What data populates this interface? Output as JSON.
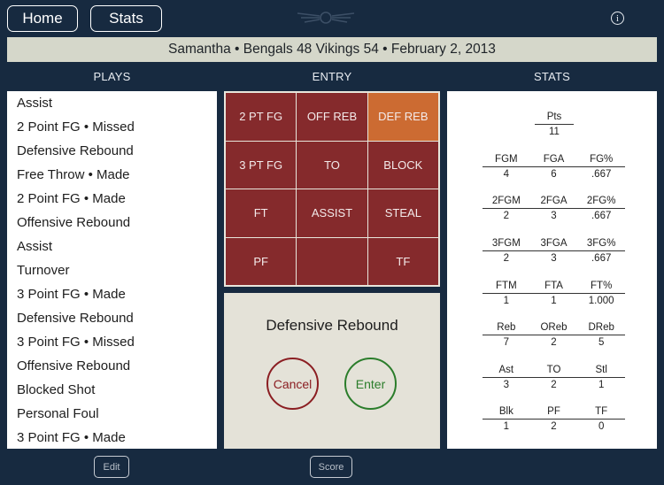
{
  "header": {
    "home_label": "Home",
    "stats_label": "Stats",
    "info_glyph": "i",
    "logo_icon": "winged-emblem-icon"
  },
  "banner": {
    "text": "Samantha • Bengals 48   Vikings 54 • February 2, 2013"
  },
  "columns": {
    "plays": "PLAYS",
    "entry": "ENTRY",
    "stats": "STATS"
  },
  "plays": [
    "Assist",
    "2 Point FG • Missed",
    "Defensive Rebound",
    "Free Throw • Made",
    "2 Point FG • Made",
    "Offensive Rebound",
    "Assist",
    "Turnover",
    "3 Point FG • Made",
    "Defensive Rebound",
    "3 Point FG • Missed",
    "Offensive Rebound",
    "Blocked Shot",
    "Personal Foul",
    "3 Point FG • Made"
  ],
  "entry": {
    "buttons": [
      "2 PT FG",
      "OFF REB",
      "DEF REB",
      "3 PT FG",
      "TO",
      "BLOCK",
      "FT",
      "ASSIST",
      "STEAL",
      "PF",
      "",
      "TF"
    ],
    "selected_label": "Defensive Rebound",
    "cancel_label": "Cancel",
    "enter_label": "Enter",
    "active_color": "#cc6b32",
    "button_color": "#852a2c"
  },
  "stats": {
    "pts": {
      "label": "Pts",
      "value": "11"
    },
    "groups": [
      {
        "labels": [
          "FGM",
          "FGA",
          "FG%"
        ],
        "values": [
          "4",
          "6",
          ".667"
        ]
      },
      {
        "labels": [
          "2FGM",
          "2FGA",
          "2FG%"
        ],
        "values": [
          "2",
          "3",
          ".667"
        ]
      },
      {
        "labels": [
          "3FGM",
          "3FGA",
          "3FG%"
        ],
        "values": [
          "2",
          "3",
          ".667"
        ]
      },
      {
        "labels": [
          "FTM",
          "FTA",
          "FT%"
        ],
        "values": [
          "1",
          "1",
          "1.000"
        ]
      },
      {
        "labels": [
          "Reb",
          "OReb",
          "DReb"
        ],
        "values": [
          "7",
          "2",
          "5"
        ]
      },
      {
        "labels": [
          "Ast",
          "TO",
          "Stl"
        ],
        "values": [
          "3",
          "2",
          "1"
        ]
      },
      {
        "labels": [
          "Blk",
          "PF",
          "TF"
        ],
        "values": [
          "1",
          "2",
          "0"
        ]
      }
    ]
  },
  "footer": {
    "edit_label": "Edit",
    "score_label": "Score"
  }
}
